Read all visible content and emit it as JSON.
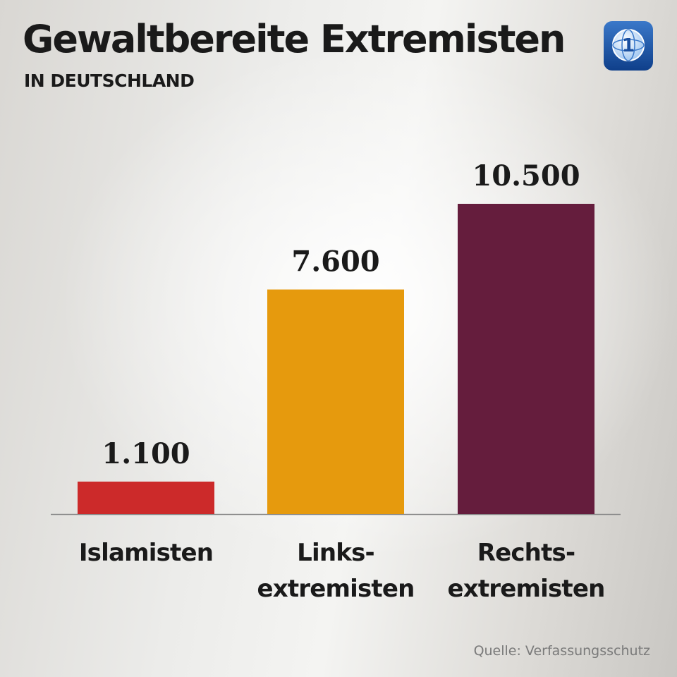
{
  "header": {
    "title": "Gewaltbereite Extremisten",
    "subtitle": "IN DEUTSCHLAND"
  },
  "logo": {
    "icon": "tagesschau-1-logo-icon",
    "text": "1",
    "color": "#1a4fa0"
  },
  "chart_data": {
    "type": "bar",
    "title": "Gewaltbereite Extremisten",
    "subtitle": "IN DEUTSCHLAND",
    "categories": [
      "Islamisten",
      "Links-extremisten",
      "Rechts-extremisten"
    ],
    "category_label_lines": [
      [
        "Islamisten"
      ],
      [
        "Links-",
        "extremisten"
      ],
      [
        "Rechts-",
        "extremisten"
      ]
    ],
    "values": [
      1100,
      7600,
      10500
    ],
    "value_labels": [
      "1.100",
      "7.600",
      "10.500"
    ],
    "colors": [
      "#cc2a2a",
      "#e69a0d",
      "#651d3d"
    ],
    "xlabel": "",
    "ylabel": "",
    "ylim": [
      0,
      10500
    ],
    "grid": false,
    "legend": "none"
  },
  "footer": {
    "source": "Quelle: Verfassungsschutz"
  }
}
